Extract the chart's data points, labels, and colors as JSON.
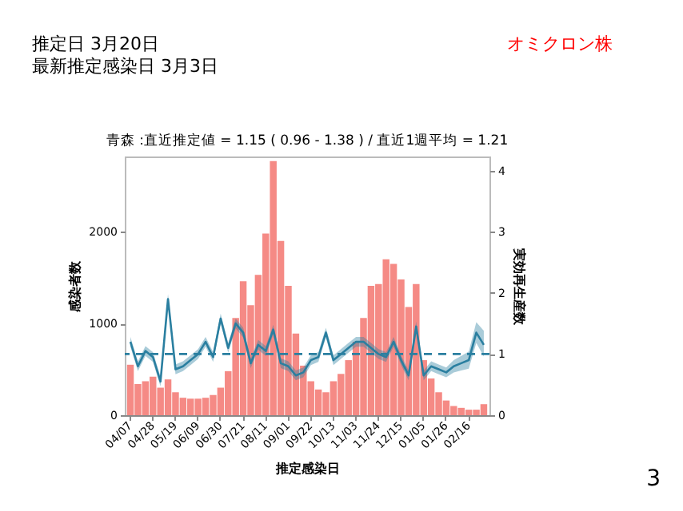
{
  "chart_data": {
    "type": "bar",
    "title": "青森 :直近推定値 = 1.15 ( 0.96 - 1.38 ) / 直近1週平均 = 1.21",
    "xlabel": "推定感染日",
    "ylabel": "感染者数",
    "y2label": "実効再生産数",
    "annotations": [
      "推定日 3月20日",
      "最新推定感染日 3月3日",
      "オミクロン株",
      "3"
    ],
    "categories": [
      "04/07",
      null,
      null,
      "04/28",
      null,
      null,
      "05/19",
      null,
      null,
      "06/09",
      null,
      null,
      "06/30",
      null,
      null,
      "07/21",
      null,
      null,
      "08/11",
      null,
      null,
      "09/01",
      null,
      null,
      "09/22",
      null,
      null,
      "10/13",
      null,
      null,
      "11/03",
      null,
      null,
      "11/24",
      null,
      null,
      "12/15",
      null,
      null,
      "01/05",
      null,
      null,
      "01/26",
      null,
      null,
      "02/16",
      null,
      null
    ],
    "ylim": [
      0,
      2820
    ],
    "yticks": [
      0,
      1000,
      2000
    ],
    "y2lim": [
      0,
      4.23
    ],
    "y2ticks": [
      0,
      1,
      2,
      3,
      4
    ],
    "grid": false,
    "ref_lines": [
      {
        "axis": "y2",
        "value": 1,
        "color": "#2a7fa0",
        "line_style": "dashed"
      }
    ],
    "series": [
      {
        "color": "#f58a85",
        "values": [
          550,
          340,
          370,
          420,
          300,
          390,
          250,
          190,
          180,
          180,
          190,
          220,
          300,
          480,
          1060,
          1460,
          1200,
          1530,
          1980,
          2770,
          1900,
          1410,
          890,
          540,
          370,
          280,
          250,
          370,
          450,
          600,
          800,
          1060,
          1410,
          1430,
          1700,
          1650,
          1480,
          1180,
          1430,
          600,
          400,
          250,
          160,
          100,
          80,
          60,
          60,
          120
        ]
      },
      {
        "type": "line",
        "axis": "y2",
        "color": "#2a7fa0",
        "values": [
          1.2,
          0.8,
          1.05,
          0.95,
          0.55,
          1.9,
          0.75,
          0.8,
          0.9,
          1.0,
          1.2,
          0.95,
          1.58,
          1.1,
          1.5,
          1.35,
          0.85,
          1.15,
          1.05,
          1.4,
          0.85,
          0.8,
          0.65,
          0.7,
          0.9,
          0.95,
          1.35,
          0.9,
          1.0,
          1.1,
          1.2,
          1.2,
          1.1,
          1.0,
          0.95,
          1.2,
          0.9,
          0.65,
          1.45,
          0.65,
          0.8,
          0.75,
          0.7,
          0.8,
          0.85,
          0.9,
          1.35,
          1.15
        ],
        "lower": [
          1.12,
          0.72,
          0.97,
          0.87,
          0.47,
          1.82,
          0.67,
          0.72,
          0.82,
          0.92,
          1.12,
          0.87,
          1.5,
          1.02,
          1.42,
          1.27,
          0.77,
          1.07,
          0.97,
          1.32,
          0.77,
          0.72,
          0.57,
          0.62,
          0.82,
          0.87,
          1.27,
          0.82,
          0.92,
          1.02,
          1.12,
          1.12,
          1.02,
          0.92,
          0.87,
          1.12,
          0.82,
          0.57,
          1.37,
          0.57,
          0.72,
          0.67,
          0.62,
          0.7,
          0.73,
          0.76,
          1.18,
          0.96
        ],
        "upper": [
          1.28,
          0.88,
          1.13,
          1.03,
          0.63,
          1.98,
          0.83,
          0.88,
          0.98,
          1.08,
          1.28,
          1.03,
          1.66,
          1.18,
          1.58,
          1.43,
          0.93,
          1.23,
          1.13,
          1.48,
          0.93,
          0.88,
          0.73,
          0.78,
          0.98,
          1.03,
          1.43,
          0.98,
          1.08,
          1.18,
          1.28,
          1.28,
          1.18,
          1.08,
          1.03,
          1.28,
          0.98,
          0.73,
          1.53,
          0.73,
          0.88,
          0.83,
          0.78,
          0.9,
          0.97,
          1.04,
          1.52,
          1.38
        ]
      }
    ]
  }
}
